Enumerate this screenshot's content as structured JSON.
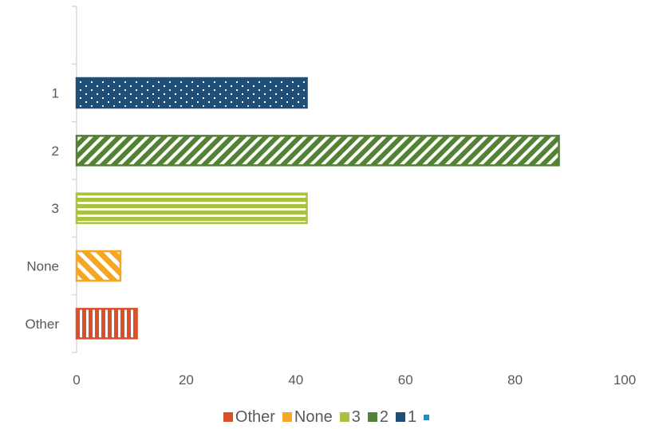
{
  "chart_data": {
    "type": "bar",
    "orientation": "horizontal",
    "categories": [
      "1",
      "2",
      "3",
      "None",
      "Other"
    ],
    "values": [
      42,
      88,
      42,
      8,
      11
    ],
    "colors": [
      "#1F4E79",
      "#548235",
      "#A9C23F",
      "#F5A623",
      "#D9502B"
    ],
    "patterns": [
      "dots",
      "diagonal-right",
      "horizontal",
      "diagonal-left",
      "vertical"
    ],
    "xlim": [
      0,
      100
    ],
    "xticks": [
      "0",
      "20",
      "40",
      "60",
      "80",
      "100"
    ],
    "grid": false,
    "legend_position": "bottom",
    "legend": [
      {
        "label": "Other",
        "color": "#D9502B"
      },
      {
        "label": "None",
        "color": "#F5A623"
      },
      {
        "label": "3",
        "color": "#A9C23F"
      },
      {
        "label": "2",
        "color": "#548235"
      },
      {
        "label": "1",
        "color": "#1F4E79"
      },
      {
        "label": "",
        "color": "#1F8FC0"
      }
    ]
  }
}
